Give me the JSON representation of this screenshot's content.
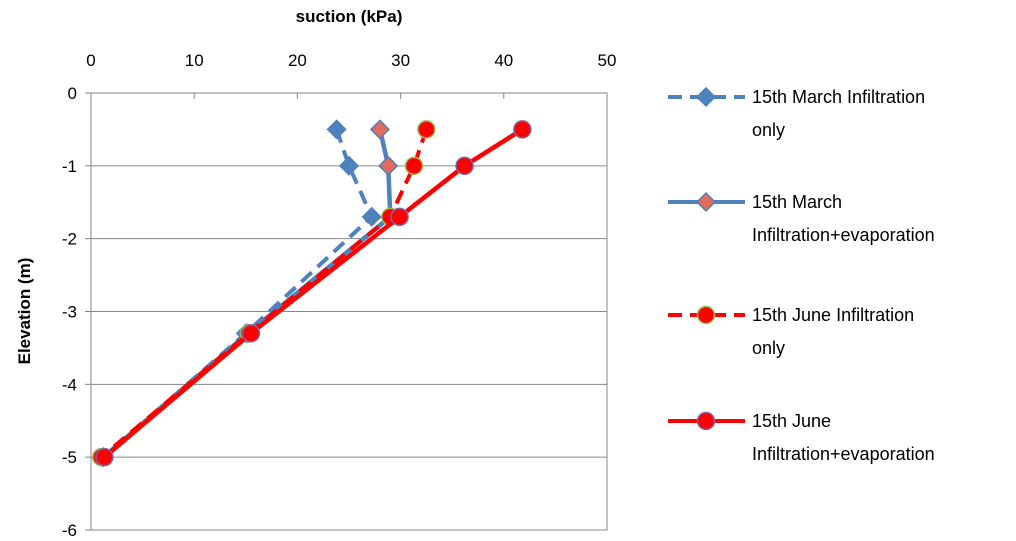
{
  "chart_data": {
    "type": "line",
    "xlabel": "suction (kPa)",
    "ylabel": "Elevation (m)",
    "xlim": [
      0,
      50
    ],
    "ylim": [
      -6,
      0
    ],
    "x_axis_position": "top",
    "x_ticks": [
      "0",
      "10",
      "20",
      "30",
      "40",
      "50"
    ],
    "y_ticks": [
      "0",
      "-1",
      "-2",
      "-3",
      "-4",
      "-5",
      "-6"
    ],
    "grid": "horizontal",
    "legend_position": "right",
    "series": [
      {
        "name": "15th March Infiltration only",
        "legend_lines": [
          "15th March Infiltration",
          "only"
        ],
        "color": "#4f81bd",
        "marker": "diamond",
        "marker_fill": "#4f81bd",
        "marker_stroke": "#4f81bd",
        "line_style": "dashed",
        "points": [
          [
            23.8,
            -0.5
          ],
          [
            25.0,
            -1.0
          ],
          [
            27.2,
            -1.7
          ],
          [
            15.0,
            -3.3
          ],
          [
            1.2,
            -5.0
          ]
        ]
      },
      {
        "name": "15th March Infiltration+evaporation",
        "legend_lines": [
          "15th March",
          "Infiltration+evaporation"
        ],
        "color": "#4f81bd",
        "marker": "diamond",
        "marker_fill": "#e26b5a",
        "marker_stroke": "#4f81bd",
        "line_style": "solid",
        "points": [
          [
            28.0,
            -0.5
          ],
          [
            28.8,
            -1.0
          ],
          [
            29.0,
            -1.7
          ],
          [
            15.2,
            -3.3
          ],
          [
            1.2,
            -5.0
          ]
        ]
      },
      {
        "name": "15th June Infiltration only",
        "legend_lines": [
          "15th June Infiltration",
          "only"
        ],
        "color": "#ff0000",
        "marker": "circle",
        "marker_fill": "#ff0000",
        "marker_stroke": "#9bbb59",
        "line_style": "dashed",
        "points": [
          [
            32.5,
            -0.5
          ],
          [
            31.3,
            -1.0
          ],
          [
            29.0,
            -1.7
          ],
          [
            15.3,
            -3.3
          ],
          [
            1.0,
            -5.0
          ]
        ]
      },
      {
        "name": "15th June Infiltration+evaporation",
        "legend_lines": [
          "15th June",
          "Infiltration+evaporation"
        ],
        "color": "#ff0000",
        "marker": "circle",
        "marker_fill": "#ff0000",
        "marker_stroke": "#8064a2",
        "line_style": "solid",
        "points": [
          [
            41.8,
            -0.5
          ],
          [
            36.2,
            -1.0
          ],
          [
            29.9,
            -1.7
          ],
          [
            15.5,
            -3.3
          ],
          [
            1.3,
            -5.0
          ]
        ]
      }
    ]
  }
}
